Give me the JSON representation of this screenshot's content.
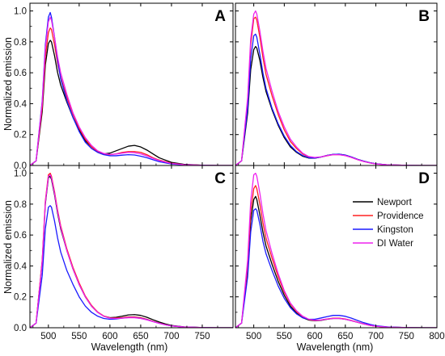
{
  "chart_data": {
    "type": "line",
    "xlabel": "Wavelength (nm)",
    "ylabel": "Normalized emission",
    "xlim": [
      470,
      800
    ],
    "ylim": [
      0,
      1.05
    ],
    "x_ticks": [
      500,
      550,
      600,
      650,
      700,
      750,
      800
    ],
    "x_tick_labels": [
      "500",
      "550",
      "600",
      "650",
      "700",
      "750",
      "800"
    ],
    "y_ticks": [
      0.0,
      0.2,
      0.4,
      0.6,
      0.8,
      1.0
    ],
    "y_tick_labels": [
      "0.0",
      "0.2",
      "0.4",
      "0.6",
      "0.8",
      "1.0"
    ],
    "legend": {
      "placement": "right, middle of panel D",
      "entries": [
        {
          "name": "Newport",
          "color": "#000000"
        },
        {
          "name": "Providence",
          "color": "#ff2020"
        },
        {
          "name": "Kingston",
          "color": "#1a1aff"
        },
        {
          "name": "DI Water",
          "color": "#ee22ee"
        }
      ]
    },
    "x": [
      470,
      480,
      490,
      495,
      500,
      503,
      505,
      510,
      515,
      520,
      530,
      540,
      550,
      560,
      570,
      580,
      590,
      600,
      610,
      620,
      630,
      640,
      650,
      660,
      670,
      680,
      690,
      700,
      720,
      750,
      780,
      800
    ],
    "panels": [
      {
        "label": "A",
        "series": [
          {
            "name": "Newport",
            "values": [
              0.0,
              0.03,
              0.35,
              0.65,
              0.79,
              0.81,
              0.8,
              0.71,
              0.6,
              0.52,
              0.41,
              0.31,
              0.23,
              0.16,
              0.12,
              0.09,
              0.075,
              0.08,
              0.095,
              0.11,
              0.125,
              0.13,
              0.12,
              0.1,
              0.075,
              0.05,
              0.035,
              0.02,
              0.008,
              0.002,
              0.0,
              0.0
            ]
          },
          {
            "name": "Providence",
            "values": [
              0.0,
              0.03,
              0.38,
              0.7,
              0.86,
              0.89,
              0.88,
              0.78,
              0.66,
              0.57,
              0.44,
              0.33,
              0.24,
              0.17,
              0.12,
              0.09,
              0.075,
              0.07,
              0.075,
              0.085,
              0.09,
              0.09,
              0.085,
              0.07,
              0.05,
              0.035,
              0.025,
              0.015,
              0.005,
              0.001,
              0.0,
              0.0
            ]
          },
          {
            "name": "Kingston",
            "values": [
              0.0,
              0.03,
              0.42,
              0.78,
              0.96,
              0.99,
              0.96,
              0.83,
              0.68,
              0.56,
              0.42,
              0.31,
              0.22,
              0.15,
              0.11,
              0.085,
              0.07,
              0.063,
              0.063,
              0.067,
              0.07,
              0.068,
              0.06,
              0.05,
              0.037,
              0.025,
              0.017,
              0.01,
              0.004,
              0.001,
              0.0,
              0.0
            ]
          },
          {
            "name": "DI Water",
            "values": [
              0.0,
              0.03,
              0.41,
              0.76,
              0.93,
              0.96,
              0.94,
              0.83,
              0.7,
              0.6,
              0.46,
              0.34,
              0.25,
              0.18,
              0.13,
              0.095,
              0.078,
              0.072,
              0.074,
              0.08,
              0.085,
              0.083,
              0.075,
              0.062,
              0.046,
              0.032,
              0.022,
              0.013,
              0.005,
              0.001,
              0.0,
              0.0
            ]
          }
        ]
      },
      {
        "label": "B",
        "series": [
          {
            "name": "Newport",
            "values": [
              0.0,
              0.03,
              0.34,
              0.62,
              0.75,
              0.77,
              0.76,
              0.68,
              0.57,
              0.48,
              0.36,
              0.26,
              0.18,
              0.12,
              0.085,
              0.06,
              0.048,
              0.047,
              0.055,
              0.065,
              0.072,
              0.073,
              0.067,
              0.055,
              0.04,
              0.028,
              0.018,
              0.011,
              0.004,
              0.001,
              0.0,
              0.0
            ]
          },
          {
            "name": "Providence",
            "values": [
              0.0,
              0.03,
              0.42,
              0.78,
              0.95,
              0.96,
              0.94,
              0.83,
              0.7,
              0.59,
              0.45,
              0.33,
              0.23,
              0.155,
              0.11,
              0.075,
              0.055,
              0.05,
              0.055,
              0.063,
              0.07,
              0.07,
              0.064,
              0.052,
              0.038,
              0.026,
              0.017,
              0.01,
              0.004,
              0.001,
              0.0,
              0.0
            ]
          },
          {
            "name": "Kingston",
            "values": [
              0.0,
              0.03,
              0.37,
              0.69,
              0.84,
              0.85,
              0.83,
              0.72,
              0.6,
              0.5,
              0.37,
              0.27,
              0.19,
              0.13,
              0.09,
              0.065,
              0.05,
              0.048,
              0.055,
              0.065,
              0.072,
              0.073,
              0.067,
              0.055,
              0.04,
              0.028,
              0.018,
              0.011,
              0.004,
              0.001,
              0.0,
              0.0
            ]
          },
          {
            "name": "DI Water",
            "values": [
              0.0,
              0.03,
              0.44,
              0.82,
              0.98,
              1.0,
              0.98,
              0.87,
              0.74,
              0.63,
              0.48,
              0.35,
              0.25,
              0.17,
              0.12,
              0.08,
              0.058,
              0.052,
              0.056,
              0.064,
              0.07,
              0.07,
              0.064,
              0.052,
              0.038,
              0.026,
              0.017,
              0.01,
              0.004,
              0.001,
              0.0,
              0.0
            ]
          }
        ]
      },
      {
        "label": "C",
        "series": [
          {
            "name": "Newport",
            "values": [
              0.0,
              0.03,
              0.43,
              0.8,
              0.97,
              0.98,
              0.96,
              0.86,
              0.74,
              0.64,
              0.5,
              0.38,
              0.28,
              0.2,
              0.14,
              0.1,
              0.075,
              0.065,
              0.068,
              0.075,
              0.083,
              0.085,
              0.08,
              0.068,
              0.052,
              0.037,
              0.025,
              0.015,
              0.006,
              0.001,
              0.0,
              0.0
            ]
          },
          {
            "name": "Providence",
            "values": [
              0.0,
              0.03,
              0.44,
              0.82,
              0.99,
              1.0,
              0.98,
              0.88,
              0.76,
              0.66,
              0.51,
              0.39,
              0.29,
              0.205,
              0.145,
              0.102,
              0.076,
              0.064,
              0.063,
              0.066,
              0.07,
              0.07,
              0.065,
              0.055,
              0.042,
              0.03,
              0.02,
              0.012,
              0.005,
              0.001,
              0.0,
              0.0
            ]
          },
          {
            "name": "Kingston",
            "values": [
              0.0,
              0.03,
              0.34,
              0.64,
              0.78,
              0.79,
              0.78,
              0.69,
              0.58,
              0.49,
              0.37,
              0.28,
              0.2,
              0.14,
              0.1,
              0.075,
              0.06,
              0.055,
              0.057,
              0.062,
              0.066,
              0.066,
              0.061,
              0.052,
              0.04,
              0.029,
              0.019,
              0.012,
              0.005,
              0.001,
              0.0,
              0.0
            ]
          },
          {
            "name": "DI Water",
            "values": [
              0.0,
              0.03,
              0.43,
              0.81,
              0.98,
              0.99,
              0.97,
              0.87,
              0.75,
              0.65,
              0.5,
              0.38,
              0.28,
              0.2,
              0.14,
              0.1,
              0.074,
              0.062,
              0.06,
              0.062,
              0.065,
              0.065,
              0.06,
              0.051,
              0.04,
              0.029,
              0.019,
              0.012,
              0.005,
              0.001,
              0.0,
              0.0
            ]
          }
        ]
      },
      {
        "label": "D",
        "series": [
          {
            "name": "Newport",
            "values": [
              0.0,
              0.03,
              0.37,
              0.69,
              0.83,
              0.85,
              0.83,
              0.73,
              0.62,
              0.53,
              0.41,
              0.3,
              0.21,
              0.14,
              0.095,
              0.065,
              0.05,
              0.045,
              0.048,
              0.055,
              0.06,
              0.06,
              0.055,
              0.046,
              0.035,
              0.025,
              0.016,
              0.01,
              0.004,
              0.001,
              0.0,
              0.0
            ]
          },
          {
            "name": "Providence",
            "values": [
              0.0,
              0.03,
              0.4,
              0.75,
              0.9,
              0.92,
              0.9,
              0.8,
              0.68,
              0.58,
              0.45,
              0.33,
              0.23,
              0.155,
              0.105,
              0.072,
              0.053,
              0.047,
              0.05,
              0.057,
              0.062,
              0.062,
              0.057,
              0.047,
              0.036,
              0.025,
              0.016,
              0.01,
              0.004,
              0.001,
              0.0,
              0.0
            ]
          },
          {
            "name": "Kingston",
            "values": [
              0.0,
              0.03,
              0.33,
              0.62,
              0.76,
              0.77,
              0.76,
              0.67,
              0.56,
              0.48,
              0.37,
              0.27,
              0.19,
              0.13,
              0.09,
              0.065,
              0.055,
              0.055,
              0.063,
              0.072,
              0.08,
              0.08,
              0.074,
              0.062,
              0.047,
              0.033,
              0.022,
              0.013,
              0.005,
              0.001,
              0.0,
              0.0
            ]
          },
          {
            "name": "DI Water",
            "values": [
              0.0,
              0.03,
              0.44,
              0.82,
              0.99,
              1.0,
              0.98,
              0.87,
              0.74,
              0.63,
              0.48,
              0.35,
              0.24,
              0.16,
              0.11,
              0.075,
              0.055,
              0.048,
              0.05,
              0.056,
              0.06,
              0.06,
              0.055,
              0.046,
              0.035,
              0.025,
              0.016,
              0.01,
              0.004,
              0.001,
              0.0,
              0.0
            ]
          }
        ]
      }
    ]
  }
}
